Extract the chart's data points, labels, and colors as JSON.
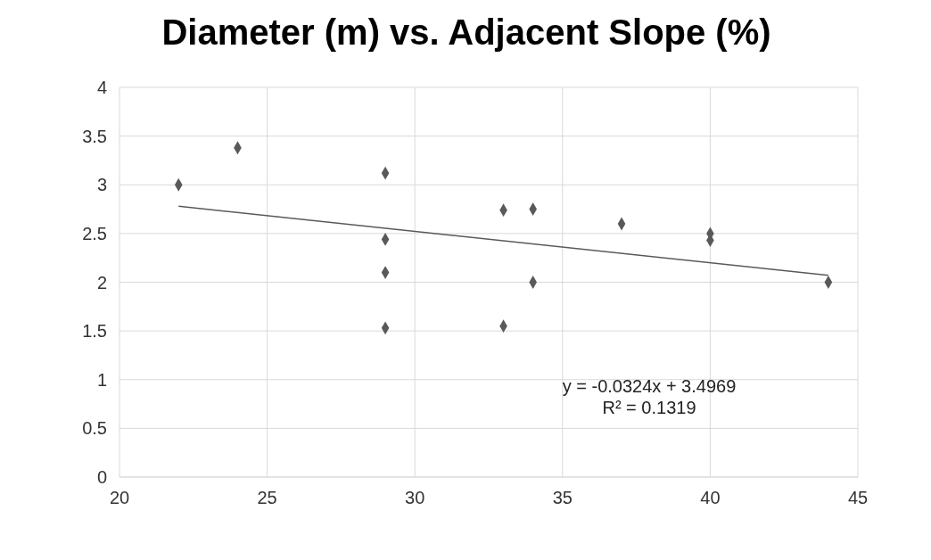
{
  "chart_data": {
    "type": "scatter",
    "title": "Diameter (m) vs. Adjacent Slope (%)",
    "xlim": [
      20,
      45
    ],
    "xticks": [
      20,
      25,
      30,
      35,
      40,
      45
    ],
    "ylim": [
      0,
      4
    ],
    "yticks": [
      0,
      0.5,
      1,
      1.5,
      2,
      2.5,
      3,
      3.5,
      4
    ],
    "grid": true,
    "series": [
      {
        "type": "scatter",
        "marker": "diamond",
        "color": "#595959",
        "x": [
          22,
          24,
          29,
          29,
          29,
          29,
          33,
          33,
          34,
          34,
          37,
          40,
          40,
          44
        ],
        "values": [
          3.0,
          3.38,
          3.12,
          2.44,
          2.1,
          1.53,
          2.74,
          1.55,
          2.75,
          2.0,
          2.6,
          2.5,
          2.43,
          2.0
        ]
      },
      {
        "type": "line",
        "color": "#595959",
        "x": [
          22,
          44
        ],
        "values": [
          2.78,
          2.07
        ]
      }
    ],
    "annotations": [
      "y = -0.0324x + 3.4969",
      "R² = 0.1319"
    ]
  }
}
